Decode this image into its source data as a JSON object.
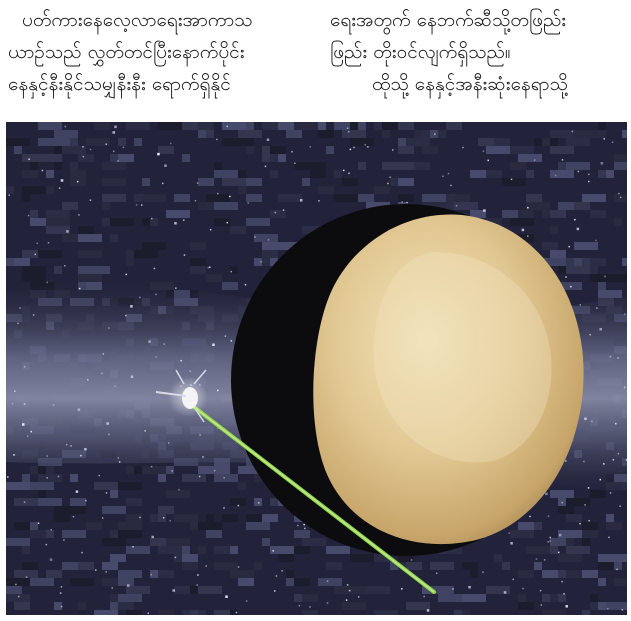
{
  "article": {
    "left_column": [
      "ပတ်ကားနေလေ့လာရေးအာကာသ",
      "ယာဉ်သည် လွှတ်တင်ပြီးနောက်ပိုင်း",
      "နေနှင့်နီးနိုင်သမျှနီးနီး ရောက်ရှိနိုင်"
    ],
    "right_column": [
      "ရေးအတွက် နေဘက်ဆီသို့တဖြည်း",
      "ဖြည်း တိုးဝင်လျက်ရှိသည်။",
      "ထိုသို့ နေနှင့်အနီးဆုံးနေရာသို့"
    ]
  },
  "figure": {
    "colors": {
      "space": "#1c1d2a",
      "milky_way": "#6f7391",
      "planet_light": "#e9d6a5",
      "planet_dark": "#9c7f4c",
      "shadow": "#0d0d10",
      "beam": "#8fd24a"
    }
  }
}
